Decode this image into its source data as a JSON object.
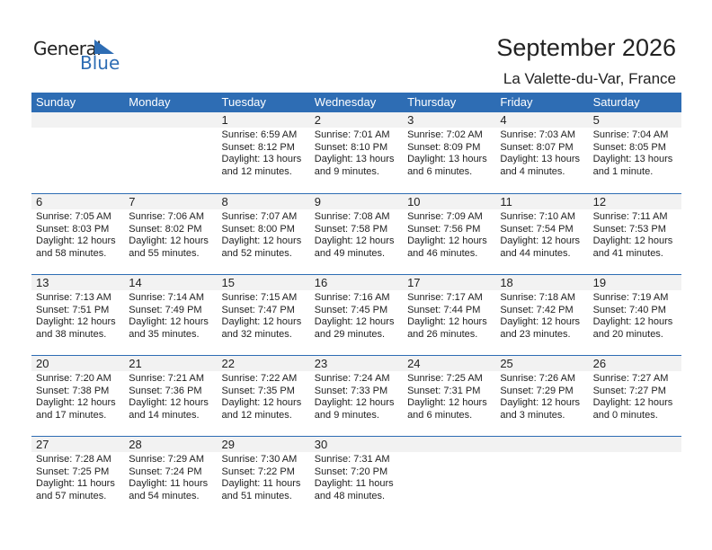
{
  "logo": {
    "text1": "General",
    "text2": "Blue"
  },
  "header": {
    "title": "September 2026",
    "location": "La Valette-du-Var, France"
  },
  "colors": {
    "accent": "#2e6db4",
    "date_band": "#f2f2f2"
  },
  "weekdays": [
    "Sunday",
    "Monday",
    "Tuesday",
    "Wednesday",
    "Thursday",
    "Friday",
    "Saturday"
  ],
  "weeks": [
    [
      null,
      null,
      {
        "day": "1",
        "sunrise": "Sunrise: 6:59 AM",
        "sunset": "Sunset: 8:12 PM",
        "daylight": "Daylight: 13 hours",
        "minutes": "and 12 minutes."
      },
      {
        "day": "2",
        "sunrise": "Sunrise: 7:01 AM",
        "sunset": "Sunset: 8:10 PM",
        "daylight": "Daylight: 13 hours",
        "minutes": "and 9 minutes."
      },
      {
        "day": "3",
        "sunrise": "Sunrise: 7:02 AM",
        "sunset": "Sunset: 8:09 PM",
        "daylight": "Daylight: 13 hours",
        "minutes": "and 6 minutes."
      },
      {
        "day": "4",
        "sunrise": "Sunrise: 7:03 AM",
        "sunset": "Sunset: 8:07 PM",
        "daylight": "Daylight: 13 hours",
        "minutes": "and 4 minutes."
      },
      {
        "day": "5",
        "sunrise": "Sunrise: 7:04 AM",
        "sunset": "Sunset: 8:05 PM",
        "daylight": "Daylight: 13 hours",
        "minutes": "and 1 minute."
      }
    ],
    [
      {
        "day": "6",
        "sunrise": "Sunrise: 7:05 AM",
        "sunset": "Sunset: 8:03 PM",
        "daylight": "Daylight: 12 hours",
        "minutes": "and 58 minutes."
      },
      {
        "day": "7",
        "sunrise": "Sunrise: 7:06 AM",
        "sunset": "Sunset: 8:02 PM",
        "daylight": "Daylight: 12 hours",
        "minutes": "and 55 minutes."
      },
      {
        "day": "8",
        "sunrise": "Sunrise: 7:07 AM",
        "sunset": "Sunset: 8:00 PM",
        "daylight": "Daylight: 12 hours",
        "minutes": "and 52 minutes."
      },
      {
        "day": "9",
        "sunrise": "Sunrise: 7:08 AM",
        "sunset": "Sunset: 7:58 PM",
        "daylight": "Daylight: 12 hours",
        "minutes": "and 49 minutes."
      },
      {
        "day": "10",
        "sunrise": "Sunrise: 7:09 AM",
        "sunset": "Sunset: 7:56 PM",
        "daylight": "Daylight: 12 hours",
        "minutes": "and 46 minutes."
      },
      {
        "day": "11",
        "sunrise": "Sunrise: 7:10 AM",
        "sunset": "Sunset: 7:54 PM",
        "daylight": "Daylight: 12 hours",
        "minutes": "and 44 minutes."
      },
      {
        "day": "12",
        "sunrise": "Sunrise: 7:11 AM",
        "sunset": "Sunset: 7:53 PM",
        "daylight": "Daylight: 12 hours",
        "minutes": "and 41 minutes."
      }
    ],
    [
      {
        "day": "13",
        "sunrise": "Sunrise: 7:13 AM",
        "sunset": "Sunset: 7:51 PM",
        "daylight": "Daylight: 12 hours",
        "minutes": "and 38 minutes."
      },
      {
        "day": "14",
        "sunrise": "Sunrise: 7:14 AM",
        "sunset": "Sunset: 7:49 PM",
        "daylight": "Daylight: 12 hours",
        "minutes": "and 35 minutes."
      },
      {
        "day": "15",
        "sunrise": "Sunrise: 7:15 AM",
        "sunset": "Sunset: 7:47 PM",
        "daylight": "Daylight: 12 hours",
        "minutes": "and 32 minutes."
      },
      {
        "day": "16",
        "sunrise": "Sunrise: 7:16 AM",
        "sunset": "Sunset: 7:45 PM",
        "daylight": "Daylight: 12 hours",
        "minutes": "and 29 minutes."
      },
      {
        "day": "17",
        "sunrise": "Sunrise: 7:17 AM",
        "sunset": "Sunset: 7:44 PM",
        "daylight": "Daylight: 12 hours",
        "minutes": "and 26 minutes."
      },
      {
        "day": "18",
        "sunrise": "Sunrise: 7:18 AM",
        "sunset": "Sunset: 7:42 PM",
        "daylight": "Daylight: 12 hours",
        "minutes": "and 23 minutes."
      },
      {
        "day": "19",
        "sunrise": "Sunrise: 7:19 AM",
        "sunset": "Sunset: 7:40 PM",
        "daylight": "Daylight: 12 hours",
        "minutes": "and 20 minutes."
      }
    ],
    [
      {
        "day": "20",
        "sunrise": "Sunrise: 7:20 AM",
        "sunset": "Sunset: 7:38 PM",
        "daylight": "Daylight: 12 hours",
        "minutes": "and 17 minutes."
      },
      {
        "day": "21",
        "sunrise": "Sunrise: 7:21 AM",
        "sunset": "Sunset: 7:36 PM",
        "daylight": "Daylight: 12 hours",
        "minutes": "and 14 minutes."
      },
      {
        "day": "22",
        "sunrise": "Sunrise: 7:22 AM",
        "sunset": "Sunset: 7:35 PM",
        "daylight": "Daylight: 12 hours",
        "minutes": "and 12 minutes."
      },
      {
        "day": "23",
        "sunrise": "Sunrise: 7:24 AM",
        "sunset": "Sunset: 7:33 PM",
        "daylight": "Daylight: 12 hours",
        "minutes": "and 9 minutes."
      },
      {
        "day": "24",
        "sunrise": "Sunrise: 7:25 AM",
        "sunset": "Sunset: 7:31 PM",
        "daylight": "Daylight: 12 hours",
        "minutes": "and 6 minutes."
      },
      {
        "day": "25",
        "sunrise": "Sunrise: 7:26 AM",
        "sunset": "Sunset: 7:29 PM",
        "daylight": "Daylight: 12 hours",
        "minutes": "and 3 minutes."
      },
      {
        "day": "26",
        "sunrise": "Sunrise: 7:27 AM",
        "sunset": "Sunset: 7:27 PM",
        "daylight": "Daylight: 12 hours",
        "minutes": "and 0 minutes."
      }
    ],
    [
      {
        "day": "27",
        "sunrise": "Sunrise: 7:28 AM",
        "sunset": "Sunset: 7:25 PM",
        "daylight": "Daylight: 11 hours",
        "minutes": "and 57 minutes."
      },
      {
        "day": "28",
        "sunrise": "Sunrise: 7:29 AM",
        "sunset": "Sunset: 7:24 PM",
        "daylight": "Daylight: 11 hours",
        "minutes": "and 54 minutes."
      },
      {
        "day": "29",
        "sunrise": "Sunrise: 7:30 AM",
        "sunset": "Sunset: 7:22 PM",
        "daylight": "Daylight: 11 hours",
        "minutes": "and 51 minutes."
      },
      {
        "day": "30",
        "sunrise": "Sunrise: 7:31 AM",
        "sunset": "Sunset: 7:20 PM",
        "daylight": "Daylight: 11 hours",
        "minutes": "and 48 minutes."
      },
      null,
      null,
      null
    ]
  ]
}
